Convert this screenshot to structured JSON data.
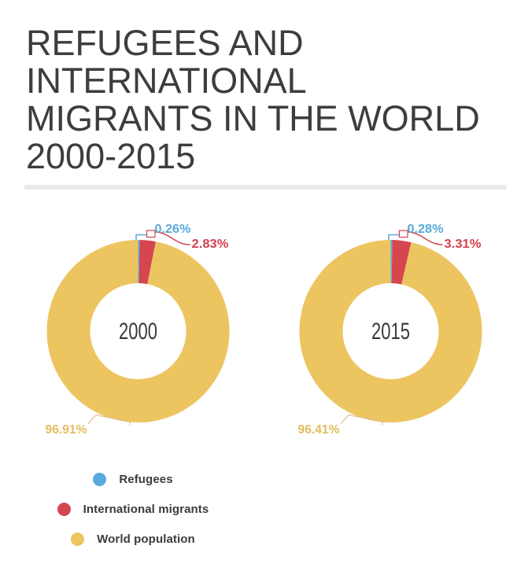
{
  "title": "REFUGEES AND\nINTERNATIONAL\nMIGRANTS IN THE WORLD\n2000-2015",
  "legend": {
    "items": [
      {
        "label": "Refugees",
        "color": "#58abdf"
      },
      {
        "label": "International migrants",
        "color": "#d5464f"
      },
      {
        "label": "World population",
        "color": "#ecc561"
      }
    ]
  },
  "chart_data": {
    "type": "pie",
    "variant": "donut",
    "title": "REFUGEES AND INTERNATIONAL MIGRANTS IN THE WORLD 2000-2015",
    "legend_position": "bottom-left",
    "categories": [
      "Refugees",
      "International migrants",
      "World population"
    ],
    "colors": [
      "#58abdf",
      "#d5464f",
      "#ecc561"
    ],
    "unit": "%",
    "charts": [
      {
        "center_label": "2000",
        "values": [
          0.26,
          2.83,
          96.91
        ],
        "labels": {
          "refugees": "0.26%",
          "migrants": "2.83%",
          "world": "96.91%"
        }
      },
      {
        "center_label": "2015",
        "values": [
          0.28,
          3.31,
          96.41
        ],
        "labels": {
          "refugees": "0.28%",
          "migrants": "3.31%",
          "world": "96.41%"
        }
      }
    ]
  }
}
